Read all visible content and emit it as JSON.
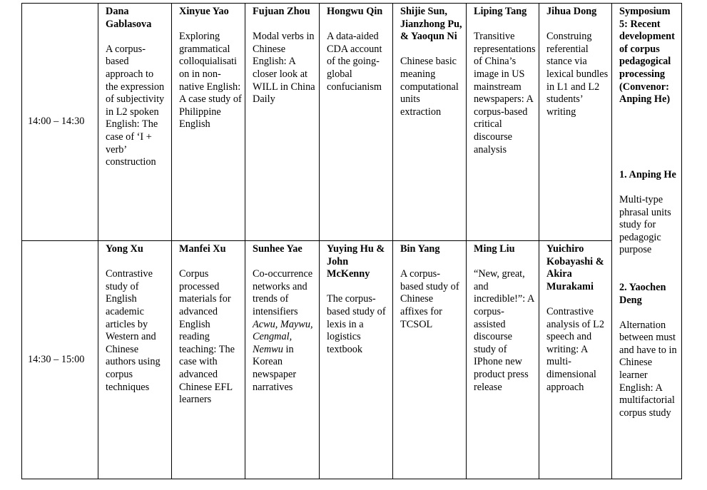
{
  "rows": [
    {
      "time": "14:00 – 14:30",
      "talks": [
        {
          "name": "Dana Gablasova",
          "title": "A corpus-based approach to the expression of subjectivity in L2 spoken English: The case of ‘I + verb’ construction"
        },
        {
          "name": "Xinyue Yao",
          "title": "Exploring grammatical colloquialisation in non-native English: A case study of Philippine English"
        },
        {
          "name": "Fujuan Zhou",
          "title": "Modal verbs in Chinese English: A closer look at WILL in China Daily"
        },
        {
          "name": "Hongwu Qin",
          "title": "A data-aided CDA account of the going-global confucianism"
        },
        {
          "name": "Shijie Sun, Jianzhong Pu, & Yaoqun Ni",
          "title": "Chinese basic meaning computational units extraction"
        },
        {
          "name": "Liping Tang",
          "title": "Transitive representations of China’s image in US mainstream newspapers: A corpus-based critical discourse analysis"
        },
        {
          "name": "Jihua Dong",
          "title": "Construing referential stance via lexical bundles in L1 and L2 students’ writing"
        }
      ]
    },
    {
      "time": "14:30 – 15:00",
      "talks": [
        {
          "name": "Yong Xu",
          "title": "Contrastive study of English academic articles by Western and Chinese authors using corpus techniques"
        },
        {
          "name": "Manfei Xu",
          "title": "Corpus processed materials for advanced English reading teaching: The case with advanced Chinese EFL learners"
        },
        {
          "name": "Sunhee Yae",
          "title_parts": [
            {
              "text": "Co-occurrence networks and trends of intensifiers ",
              "italic": false
            },
            {
              "text": "Acwu, Maywu, Cengmal, Nemwu",
              "italic": true
            },
            {
              "text": " in Korean newspaper narratives",
              "italic": false
            }
          ]
        },
        {
          "name": "Yuying Hu & John McKenny",
          "title": "The corpus-based study of lexis in a logistics textbook"
        },
        {
          "name": "Bin Yang",
          "title": "A corpus-based study of Chinese affixes for TCSOL"
        },
        {
          "name": "Ming Liu",
          "title": "“New, great, and incredible!”: A corpus-assisted discourse study of IPhone new product press release"
        },
        {
          "name": "Yuichiro Kobayashi & Akira Murakami",
          "title": "Contrastive analysis of L2 speech and writing: A multi-dimensional approach"
        }
      ]
    }
  ],
  "symposium": {
    "heading": "Symposium 5: Recent development of corpus pedagogical processing (Convenor: Anping He)",
    "talks": [
      {
        "name": "1. Anping He",
        "title": "Multi-type phrasal units study for pedagogic purpose"
      },
      {
        "name": "2. Yaochen Deng",
        "title": "Alternation between must and have to in Chinese learner English: A multifactorial corpus study"
      }
    ]
  }
}
